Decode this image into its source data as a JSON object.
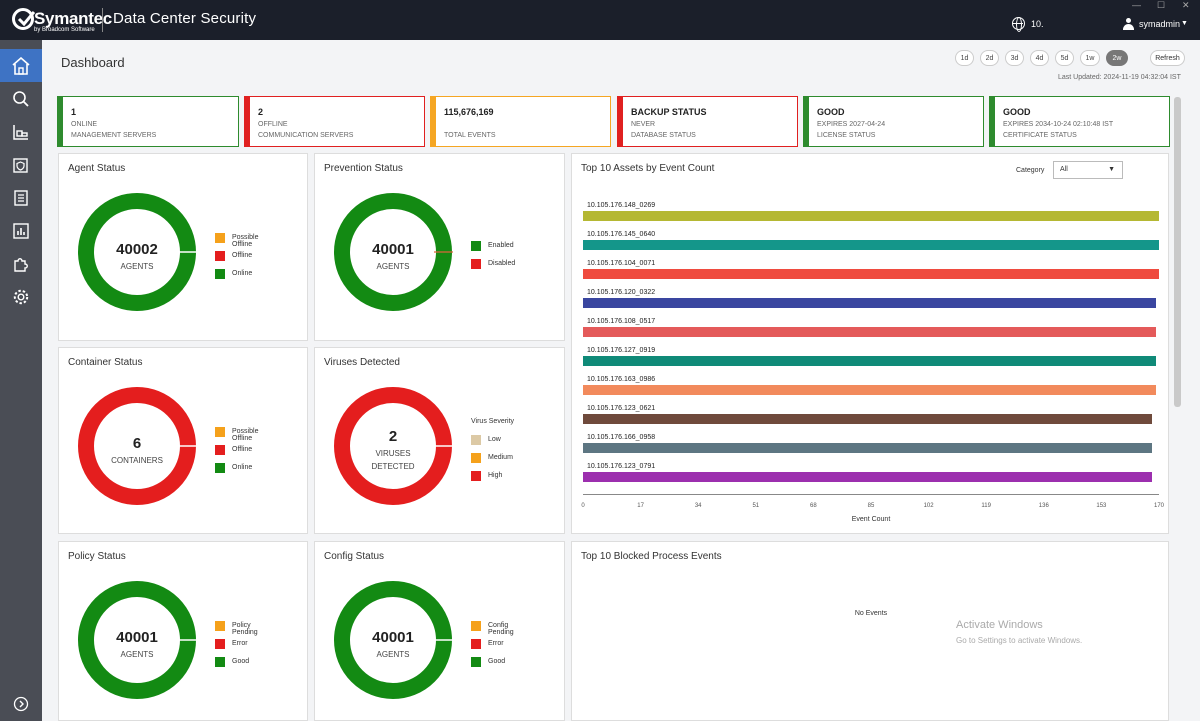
{
  "app": {
    "brand": "Symantec",
    "brand_sub": "by Broadcom Software",
    "title": "Data Center Security",
    "language": "10.",
    "username": "symadmin"
  },
  "page": {
    "title": "Dashboard",
    "ranges": [
      "1d",
      "2d",
      "3d",
      "4d",
      "5d",
      "1w",
      "2w"
    ],
    "selected_range": "2w",
    "refresh_label": "Refresh",
    "last_updated": "Last Updated: 2024-11-19 04:32:04 IST"
  },
  "kpis": [
    {
      "value": "1",
      "line1": "ONLINE",
      "line2": "MANAGEMENT SERVERS",
      "color": "#2e8b2e"
    },
    {
      "value": "2",
      "line1": "OFFLINE",
      "line2": "COMMUNICATION SERVERS",
      "color": "#e02020"
    },
    {
      "value": "115,676,169",
      "line1": "",
      "line2": "TOTAL EVENTS",
      "color": "#f5a623"
    },
    {
      "value": "BACKUP STATUS",
      "line1": "NEVER",
      "line2": "DATABASE STATUS",
      "color": "#e02020"
    },
    {
      "value": "GOOD",
      "line1": "EXPIRES 2027-04-24",
      "line2": "LICENSE STATUS",
      "color": "#2e8b2e"
    },
    {
      "value": "GOOD",
      "line1": "EXPIRES 2034-10-24 02:10:48 IST",
      "line2": "CERTIFICATE STATUS",
      "color": "#2e8b2e"
    }
  ],
  "colors": {
    "green": "#138a13",
    "red": "#e41e1e",
    "orange": "#f5a11b",
    "beige": "#dcc9a5"
  },
  "donuts": {
    "agent": {
      "title": "Agent Status",
      "value": "40002",
      "label": "AGENTS",
      "color": "#138a13",
      "legend": [
        "Possible Offline",
        "Offline",
        "Online"
      ]
    },
    "prevention": {
      "title": "Prevention Status",
      "value": "40001",
      "label": "AGENTS",
      "color": "#138a13",
      "legend": [
        "Enabled",
        "Disabled"
      ]
    },
    "container": {
      "title": "Container Status",
      "value": "6",
      "label": "CONTAINERS",
      "color": "#e41e1e",
      "legend": [
        "Possible Offline",
        "Offline",
        "Online"
      ]
    },
    "viruses": {
      "title": "Viruses Detected",
      "value": "2",
      "label1": "VIRUSES",
      "label2": "DETECTED",
      "color": "#e41e1e",
      "legend_title": "Virus Severity",
      "legend": [
        "Low",
        "Medium",
        "High"
      ]
    },
    "policy": {
      "title": "Policy Status",
      "value": "40001",
      "label": "AGENTS",
      "color": "#138a13",
      "legend": [
        "Policy Pending",
        "Error",
        "Good"
      ]
    },
    "config": {
      "title": "Config Status",
      "value": "40001",
      "label": "AGENTS",
      "color": "#138a13",
      "legend": [
        "Config Pending",
        "Error",
        "Good"
      ]
    }
  },
  "top_assets": {
    "title": "Top 10 Assets by Event Count",
    "category_label": "Category",
    "category_value": "All",
    "xlabel": "Event Count",
    "ticks": [
      "0",
      "17",
      "34",
      "51",
      "68",
      "85",
      "102",
      "119",
      "136",
      "153",
      "170"
    ]
  },
  "chart_data": {
    "type": "bar",
    "orientation": "horizontal",
    "title": "Top 10 Assets by Event Count",
    "xlabel": "Event Count",
    "xlim": [
      0,
      170
    ],
    "categories": [
      "10.105.176.148_0269",
      "10.105.176.145_0640",
      "10.105.176.104_0071",
      "10.105.176.120_0322",
      "10.105.176.108_0517",
      "10.105.176.127_0919",
      "10.105.176.163_0986",
      "10.105.176.123_0621",
      "10.105.176.166_0958",
      "10.105.176.123_0791"
    ],
    "values": [
      170,
      170,
      170,
      169,
      169,
      169,
      169,
      168,
      168,
      168
    ],
    "colors": [
      "#b5b833",
      "#14968a",
      "#ef4b3f",
      "#3a46a0",
      "#e45a5a",
      "#0f8a78",
      "#f28a5c",
      "#6f4a3c",
      "#5d7682",
      "#9c2fae"
    ]
  },
  "blocked": {
    "title": "Top 10 Blocked Process Events",
    "empty": "No Events"
  },
  "watermark": {
    "line1": "Activate Windows",
    "line2": "Go to Settings to activate Windows."
  }
}
